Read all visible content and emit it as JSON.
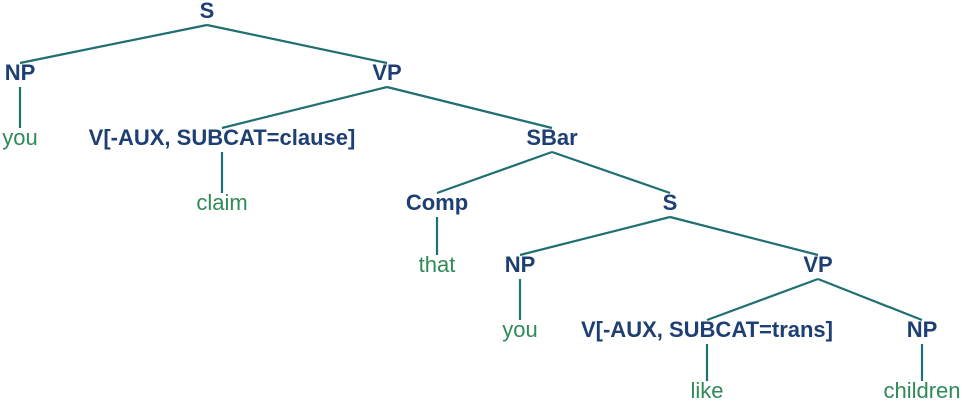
{
  "tree": {
    "nodes": [
      {
        "id": "s1",
        "label": "S",
        "kind": "category"
      },
      {
        "id": "np1",
        "label": "NP",
        "kind": "category"
      },
      {
        "id": "vp1",
        "label": "VP",
        "kind": "category"
      },
      {
        "id": "you1",
        "label": "you",
        "kind": "word"
      },
      {
        "id": "v1",
        "label": "V[-AUX, SUBCAT=clause]",
        "kind": "category"
      },
      {
        "id": "sbar",
        "label": "SBar",
        "kind": "category"
      },
      {
        "id": "claim",
        "label": "claim",
        "kind": "word"
      },
      {
        "id": "comp",
        "label": "Comp",
        "kind": "category"
      },
      {
        "id": "s2",
        "label": "S",
        "kind": "category"
      },
      {
        "id": "that",
        "label": "that",
        "kind": "word"
      },
      {
        "id": "np2",
        "label": "NP",
        "kind": "category"
      },
      {
        "id": "vp2",
        "label": "VP",
        "kind": "category"
      },
      {
        "id": "you2",
        "label": "you",
        "kind": "word"
      },
      {
        "id": "v2",
        "label": "V[-AUX, SUBCAT=trans]",
        "kind": "category"
      },
      {
        "id": "np3",
        "label": "NP",
        "kind": "category"
      },
      {
        "id": "like",
        "label": "like",
        "kind": "word"
      },
      {
        "id": "children",
        "label": "children",
        "kind": "word"
      }
    ],
    "edges": [
      [
        "s1",
        "np1"
      ],
      [
        "s1",
        "vp1"
      ],
      [
        "np1",
        "you1"
      ],
      [
        "vp1",
        "v1"
      ],
      [
        "vp1",
        "sbar"
      ],
      [
        "v1",
        "claim"
      ],
      [
        "sbar",
        "comp"
      ],
      [
        "sbar",
        "s2"
      ],
      [
        "comp",
        "that"
      ],
      [
        "s2",
        "np2"
      ],
      [
        "s2",
        "vp2"
      ],
      [
        "np2",
        "you2"
      ],
      [
        "vp2",
        "v2"
      ],
      [
        "vp2",
        "np3"
      ],
      [
        "v2",
        "like"
      ],
      [
        "np3",
        "children"
      ]
    ],
    "colors": {
      "category": "#1e3f73",
      "word": "#2e8b57",
      "edge": "#1f6f73"
    }
  }
}
